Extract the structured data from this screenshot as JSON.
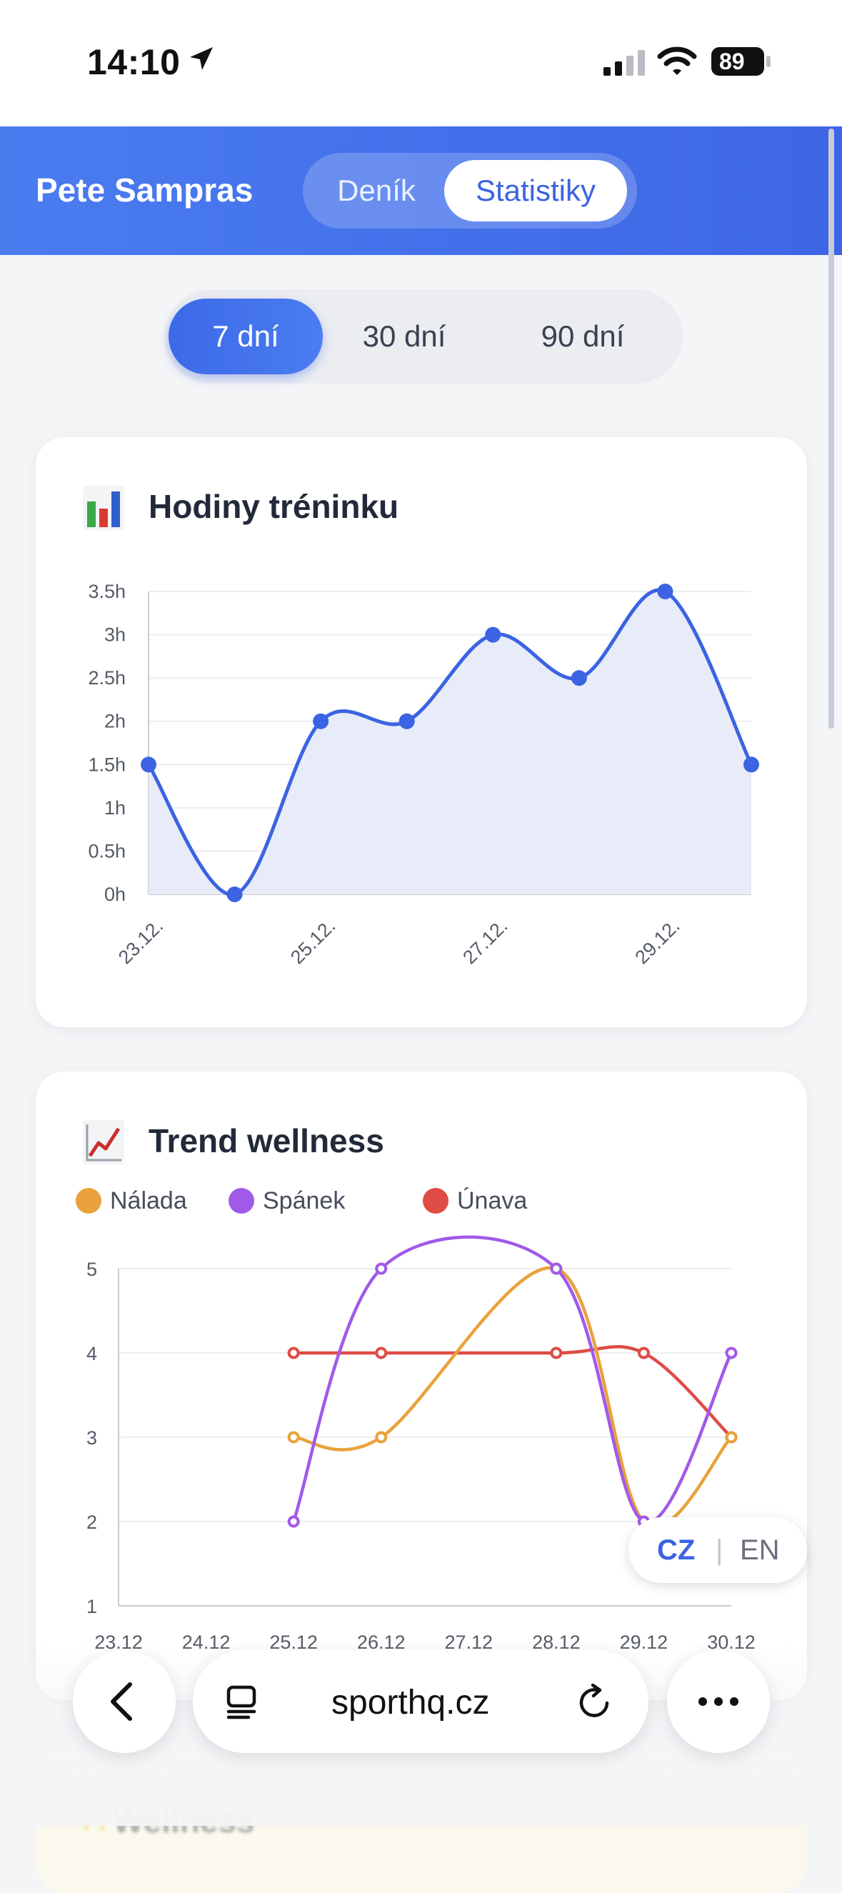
{
  "status_bar": {
    "time": "14:10",
    "battery": "89"
  },
  "header": {
    "user_name": "Pete Sampras",
    "tabs": [
      {
        "label": "Deník",
        "selected": false
      },
      {
        "label": "Statistiky",
        "selected": true
      }
    ]
  },
  "range_selector": {
    "options": [
      {
        "label": "7 dní",
        "selected": true
      },
      {
        "label": "30 dní",
        "selected": false
      },
      {
        "label": "90 dní",
        "selected": false
      }
    ]
  },
  "training_card": {
    "icon": "📊",
    "title": "Hodiny tréninku"
  },
  "wellness_card": {
    "icon": "📈",
    "title": "Trend wellness",
    "legend": [
      {
        "label": "Nálada",
        "color": "#e9a23b"
      },
      {
        "label": "Spánek",
        "color": "#a15ae8"
      },
      {
        "label": "Únava",
        "color": "#df4b45"
      }
    ]
  },
  "chart_data": [
    {
      "type": "area",
      "title": "Hodiny tréninku",
      "x": [
        "23.12.",
        "24.12.",
        "25.12.",
        "26.12.",
        "27.12.",
        "28.12.",
        "29.12.",
        "30.12."
      ],
      "x_tick_labels": [
        "23.12.",
        "25.12.",
        "27.12.",
        "29.12."
      ],
      "values": [
        1.5,
        0,
        2,
        2,
        3,
        2.5,
        3.5,
        1.5
      ],
      "y_tick_labels": [
        "0h",
        "0.5h",
        "1h",
        "1.5h",
        "2h",
        "2.5h",
        "3h",
        "3.5h"
      ],
      "ylim": [
        0,
        3.5
      ],
      "line_color": "#3b63e2",
      "fill_color": "#e8ecf9",
      "grid": true
    },
    {
      "type": "line",
      "title": "Trend wellness",
      "categories": [
        "23.12",
        "24.12",
        "25.12",
        "26.12",
        "27.12",
        "28.12",
        "29.12",
        "30.12"
      ],
      "series": [
        {
          "name": "Nálada",
          "color": "#e9a23b",
          "values": [
            null,
            null,
            3,
            3,
            null,
            5,
            2,
            3
          ]
        },
        {
          "name": "Spánek",
          "color": "#a15ae8",
          "values": [
            null,
            null,
            2,
            5,
            null,
            5,
            2,
            4
          ]
        },
        {
          "name": "Únava",
          "color": "#df4b45",
          "values": [
            null,
            null,
            4,
            4,
            null,
            4,
            4,
            3
          ]
        }
      ],
      "y_tick_labels": [
        "1",
        "2",
        "3",
        "4",
        "5"
      ],
      "ylim": [
        1,
        5
      ],
      "grid": true,
      "legend_position": "top-left"
    }
  ],
  "language_switch": {
    "cz": "CZ",
    "separator": "|",
    "en": "EN",
    "selected": "CZ"
  },
  "browser": {
    "url": "sporthq.cz"
  },
  "next_card_peek": {
    "icon": "✨",
    "title": "Wellness"
  }
}
